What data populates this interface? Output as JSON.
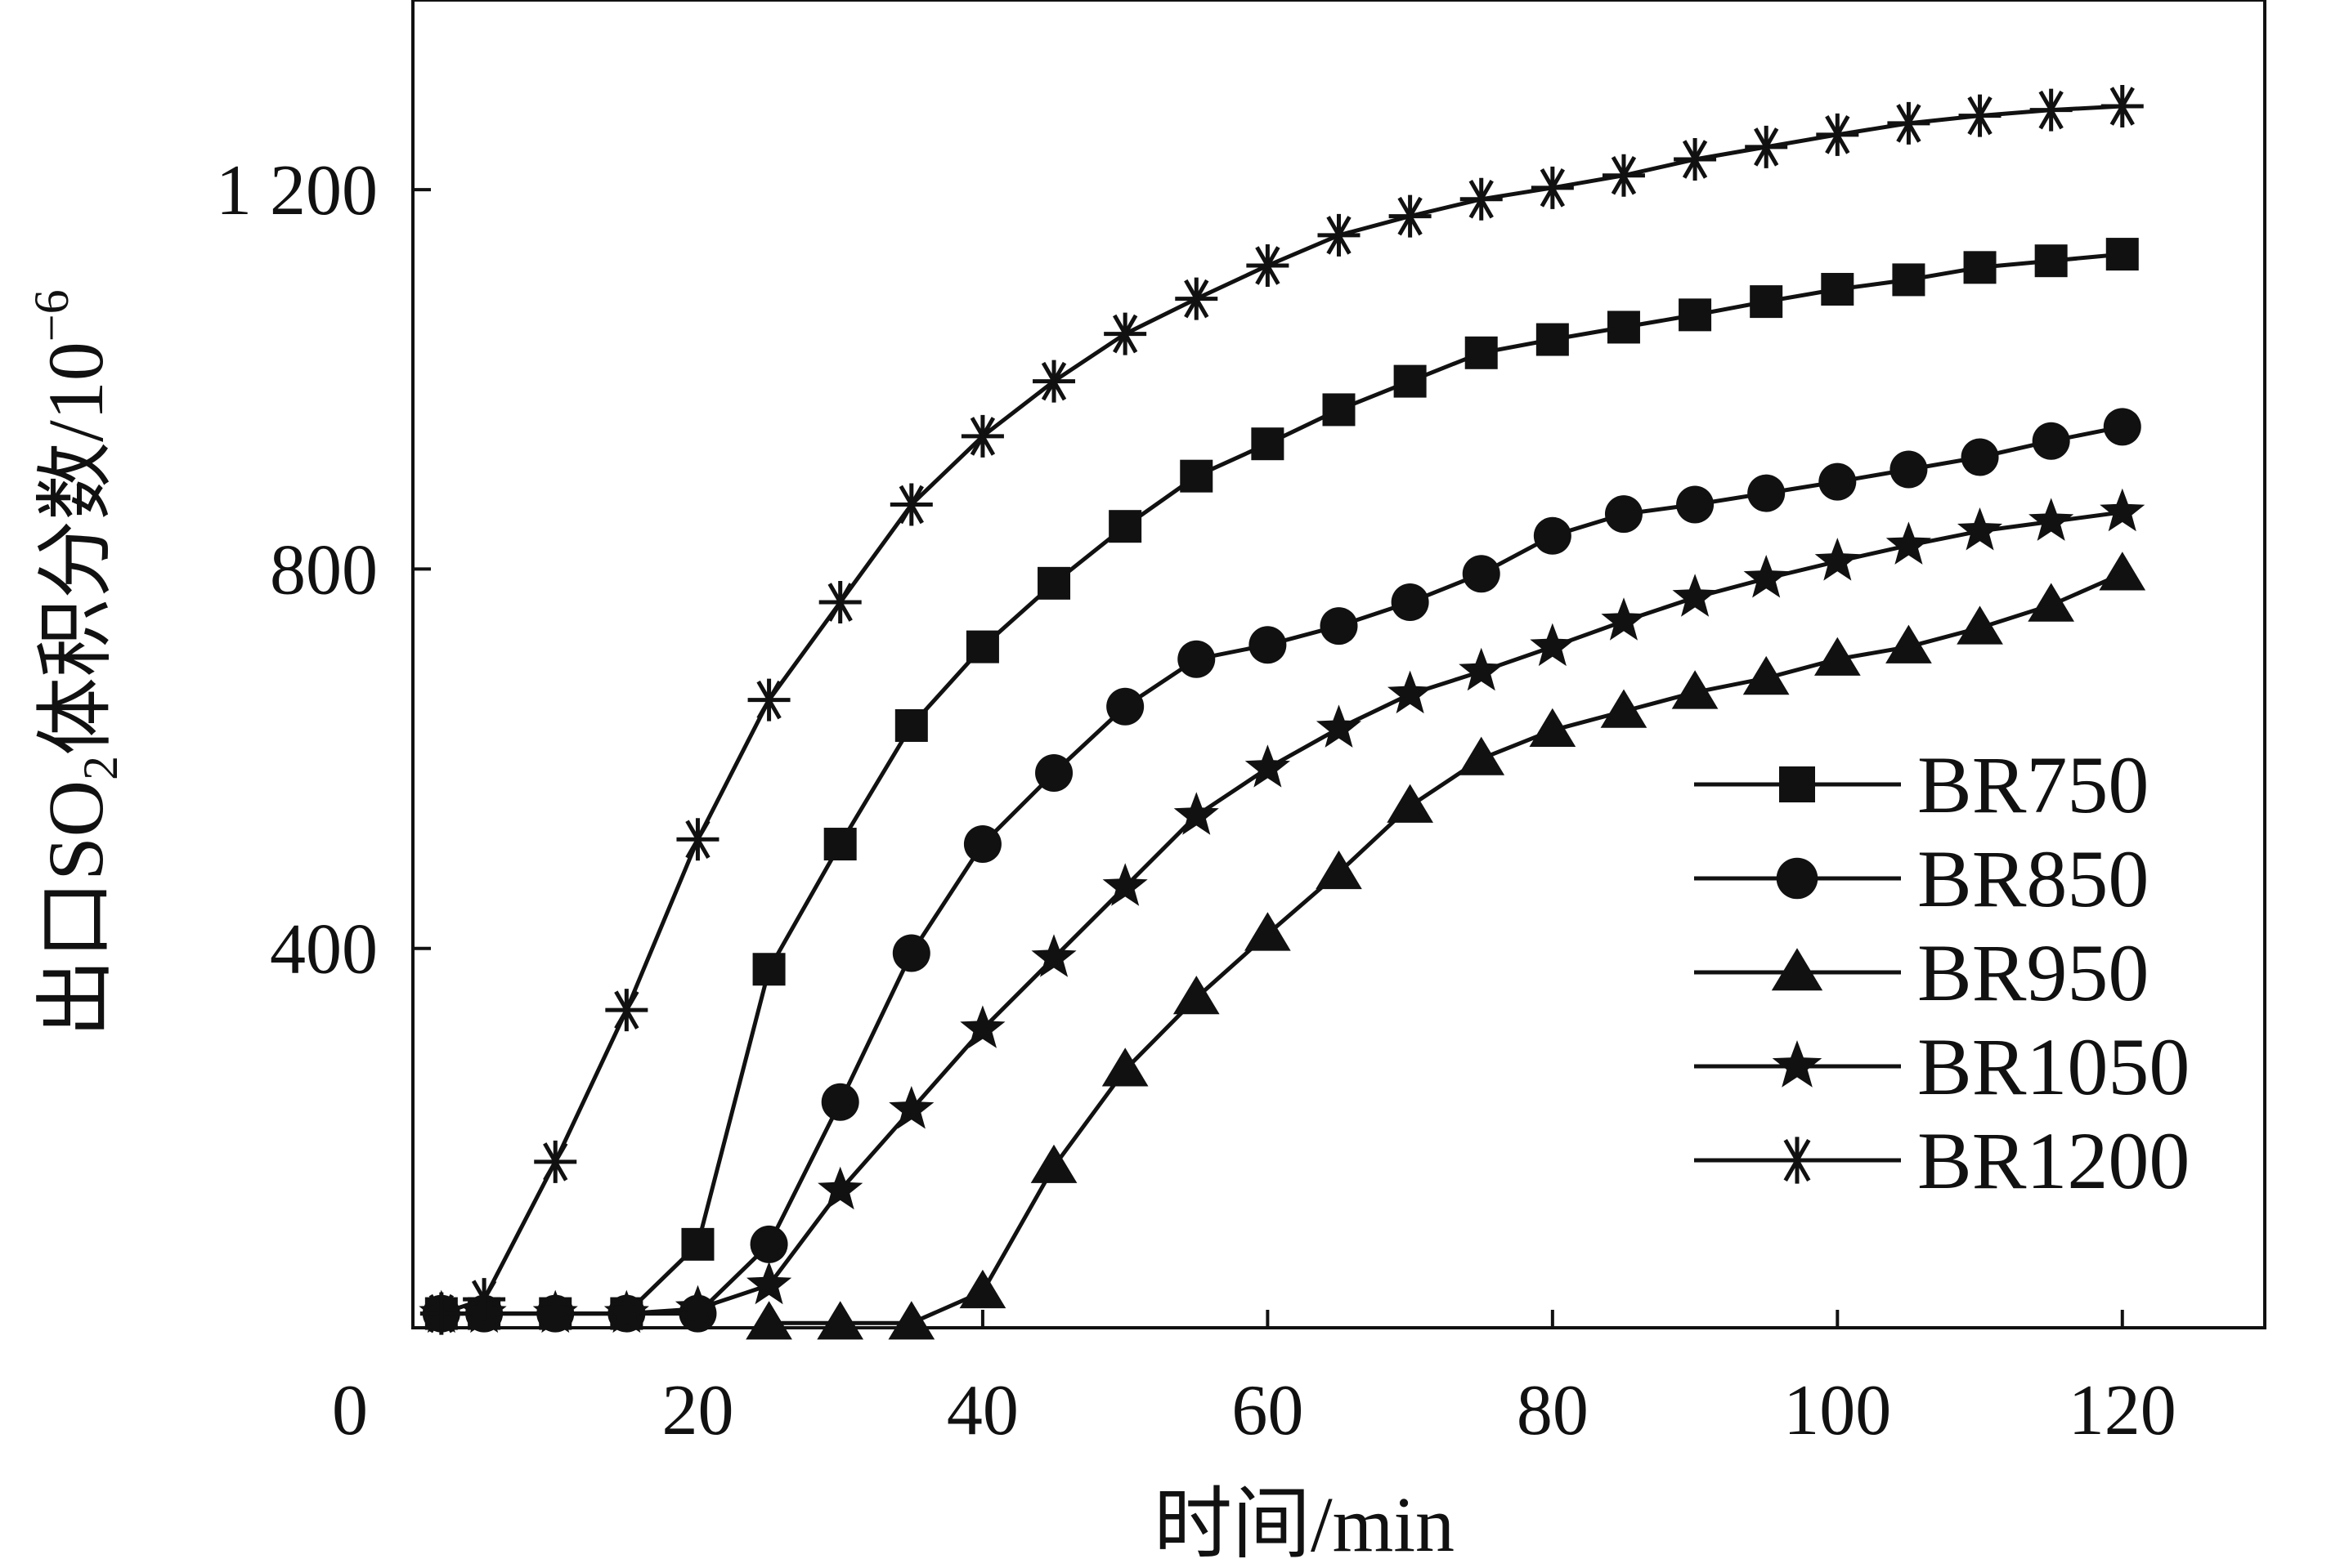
{
  "chart_data": {
    "type": "line",
    "xlabel": "时间/min",
    "ylabel_parts": {
      "prefix": "出口SO",
      "subscript": "2",
      "suffix": "体积分数/10",
      "superscript": "−6"
    },
    "xlim": [
      0,
      130
    ],
    "ylim": [
      0,
      1400
    ],
    "x_ticks": [
      0,
      20,
      40,
      60,
      80,
      100,
      120
    ],
    "y_ticks": [
      400,
      800,
      1200
    ],
    "x_tick_labels": [
      "0",
      "20",
      "40",
      "60",
      "80",
      "100",
      "120"
    ],
    "y_tick_labels": [
      "400",
      "800",
      "1 200"
    ],
    "grid": false,
    "legend_position": "bottom-right",
    "series": [
      {
        "name": "BR750",
        "marker": "square",
        "points": [
          [
            2,
            15
          ],
          [
            5,
            15
          ],
          [
            10,
            15
          ],
          [
            15,
            15
          ],
          [
            20,
            88
          ],
          [
            25,
            378
          ],
          [
            30,
            510
          ],
          [
            35,
            635
          ],
          [
            40,
            718
          ],
          [
            45,
            785
          ],
          [
            50,
            845
          ],
          [
            55,
            898
          ],
          [
            60,
            932
          ],
          [
            65,
            968
          ],
          [
            70,
            998
          ],
          [
            75,
            1028
          ],
          [
            80,
            1042
          ],
          [
            85,
            1055
          ],
          [
            90,
            1068
          ],
          [
            95,
            1082
          ],
          [
            100,
            1095
          ],
          [
            105,
            1105
          ],
          [
            110,
            1118
          ],
          [
            115,
            1125
          ],
          [
            120,
            1132
          ]
        ]
      },
      {
        "name": "BR850",
        "marker": "circle",
        "points": [
          [
            2,
            15
          ],
          [
            5,
            15
          ],
          [
            10,
            15
          ],
          [
            15,
            15
          ],
          [
            20,
            15
          ],
          [
            25,
            88
          ],
          [
            30,
            238
          ],
          [
            35,
            395
          ],
          [
            40,
            510
          ],
          [
            45,
            585
          ],
          [
            50,
            655
          ],
          [
            55,
            705
          ],
          [
            60,
            720
          ],
          [
            65,
            740
          ],
          [
            70,
            765
          ],
          [
            75,
            795
          ],
          [
            80,
            835
          ],
          [
            85,
            858
          ],
          [
            90,
            868
          ],
          [
            95,
            880
          ],
          [
            100,
            892
          ],
          [
            105,
            905
          ],
          [
            110,
            918
          ],
          [
            115,
            935
          ],
          [
            120,
            950
          ]
        ]
      },
      {
        "name": "BR950",
        "marker": "triangle",
        "points": [
          [
            25,
            5
          ],
          [
            30,
            5
          ],
          [
            35,
            5
          ],
          [
            40,
            38
          ],
          [
            45,
            170
          ],
          [
            50,
            272
          ],
          [
            55,
            348
          ],
          [
            60,
            415
          ],
          [
            65,
            480
          ],
          [
            70,
            550
          ],
          [
            75,
            600
          ],
          [
            80,
            630
          ],
          [
            85,
            650
          ],
          [
            90,
            670
          ],
          [
            95,
            685
          ],
          [
            100,
            705
          ],
          [
            105,
            718
          ],
          [
            110,
            738
          ],
          [
            115,
            762
          ],
          [
            120,
            795
          ]
        ]
      },
      {
        "name": "BR1050",
        "marker": "star",
        "points": [
          [
            2,
            15
          ],
          [
            5,
            15
          ],
          [
            10,
            15
          ],
          [
            15,
            15
          ],
          [
            20,
            20
          ],
          [
            25,
            45
          ],
          [
            30,
            145
          ],
          [
            35,
            230
          ],
          [
            40,
            315
          ],
          [
            45,
            390
          ],
          [
            50,
            465
          ],
          [
            55,
            540
          ],
          [
            60,
            590
          ],
          [
            65,
            632
          ],
          [
            70,
            668
          ],
          [
            75,
            692
          ],
          [
            80,
            718
          ],
          [
            85,
            745
          ],
          [
            90,
            770
          ],
          [
            95,
            790
          ],
          [
            100,
            808
          ],
          [
            105,
            825
          ],
          [
            110,
            840
          ],
          [
            115,
            850
          ],
          [
            120,
            860
          ]
        ]
      },
      {
        "name": "BR1200",
        "marker": "asterisk",
        "points": [
          [
            2,
            15
          ],
          [
            5,
            30
          ],
          [
            10,
            175
          ],
          [
            15,
            335
          ],
          [
            20,
            515
          ],
          [
            25,
            662
          ],
          [
            30,
            765
          ],
          [
            35,
            868
          ],
          [
            40,
            940
          ],
          [
            45,
            998
          ],
          [
            50,
            1048
          ],
          [
            55,
            1085
          ],
          [
            60,
            1120
          ],
          [
            65,
            1152
          ],
          [
            70,
            1172
          ],
          [
            75,
            1190
          ],
          [
            80,
            1202
          ],
          [
            85,
            1215
          ],
          [
            90,
            1232
          ],
          [
            95,
            1245
          ],
          [
            100,
            1258
          ],
          [
            105,
            1270
          ],
          [
            110,
            1278
          ],
          [
            115,
            1284
          ],
          [
            120,
            1288
          ]
        ]
      }
    ]
  }
}
